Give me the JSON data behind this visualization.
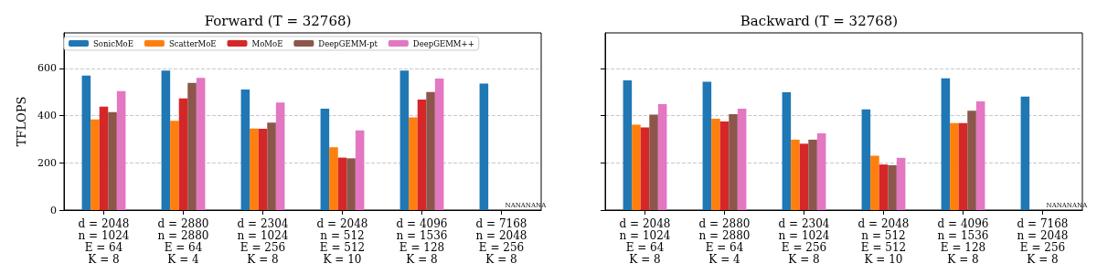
{
  "chart_data": [
    {
      "type": "bar",
      "title": "Forward (T = 32768)",
      "ylabel": "TFLOPS",
      "categories": [
        "d = 2048\nn = 1024\nE = 64\nK = 8",
        "d = 2880\nn = 2880\nE = 64\nK = 4",
        "d = 2304\nn = 1024\nE = 256\nK = 8",
        "d = 2048\nn = 512\nE = 512\nK = 10",
        "d = 4096\nn = 1536\nE = 128\nK = 8",
        "d = 7168\nn = 2048\nE = 256\nK = 8"
      ],
      "series": [
        {
          "name": "SonicMoE",
          "color": "#1f77b4",
          "values": [
            569,
            591,
            510,
            429,
            591,
            535
          ]
        },
        {
          "name": "ScatterMoE",
          "color": "#ff7f0e",
          "values": [
            384,
            378,
            345,
            266,
            392,
            null
          ]
        },
        {
          "name": "MoMoE",
          "color": "#d62728",
          "values": [
            438,
            473,
            344,
            222,
            468,
            null
          ]
        },
        {
          "name": "DeepGEMM-pt",
          "color": "#8c564b",
          "values": [
            415,
            538,
            370,
            219,
            500,
            null
          ]
        },
        {
          "name": "DeepGEMM++",
          "color": "#e377c2",
          "values": [
            504,
            560,
            455,
            337,
            557,
            null
          ]
        }
      ],
      "annotations": [
        "NANANANA"
      ],
      "ylim": [
        0,
        750
      ],
      "yticks": [
        0,
        200,
        400,
        600
      ],
      "grid": "y",
      "legend": "top left"
    },
    {
      "type": "bar",
      "title": "Backward (T = 32768)",
      "categories": [
        "d = 2048\nn = 1024\nE = 64\nK = 8",
        "d = 2880\nn = 2880\nE = 64\nK = 4",
        "d = 2304\nn = 1024\nE = 256\nK = 8",
        "d = 2048\nn = 512\nE = 512\nK = 10",
        "d = 4096\nn = 1536\nE = 128\nK = 8",
        "d = 7168\nn = 2048\nE = 256\nK = 8"
      ],
      "series": [
        {
          "color": "#1f77b4",
          "values": [
            549,
            543,
            499,
            426,
            558,
            480
          ]
        },
        {
          "color": "#ff7f0e",
          "values": [
            361,
            387,
            298,
            230,
            368,
            null
          ]
        },
        {
          "color": "#d62728",
          "values": [
            350,
            375,
            281,
            193,
            368,
            null
          ]
        },
        {
          "color": "#8c564b",
          "values": [
            404,
            406,
            298,
            190,
            420,
            null
          ]
        },
        {
          "color": "#e377c2",
          "values": [
            448,
            429,
            325,
            221,
            460,
            null
          ]
        }
      ],
      "annotations": [
        "NANANANA"
      ],
      "ylim": [
        0,
        750
      ],
      "yticks": [
        0,
        200,
        400,
        600
      ],
      "grid": "y",
      "tick_labels": "x",
      "legend": false
    }
  ]
}
